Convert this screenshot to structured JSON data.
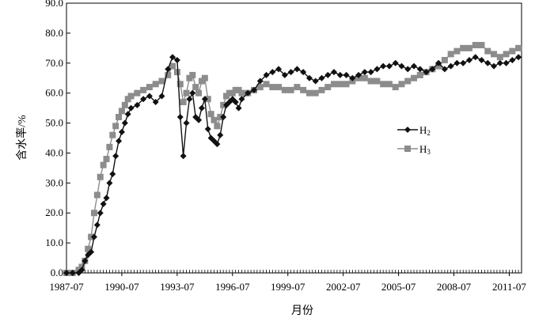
{
  "chart_data": {
    "type": "line",
    "xlabel": "月份",
    "ylabel": "含水率/%",
    "ylim": [
      0,
      90
    ],
    "yticks": [
      "0.0",
      "10.0",
      "20.0",
      "30.0",
      "40.0",
      "50.0",
      "60.0",
      "70.0",
      "80.0",
      "90.0"
    ],
    "xlim": [
      "1987-07",
      "2012-03"
    ],
    "xticks": [
      "1987-07",
      "1990-07",
      "1993-07",
      "1996-07",
      "1999-07",
      "2002-07",
      "2005-07",
      "2008-07",
      "2011-07"
    ],
    "grid": false,
    "legend_position": "center-right",
    "series": [
      {
        "name": "H2",
        "label_main": "H",
        "label_sub": "2",
        "color": "#111111",
        "marker": "diamond",
        "points": [
          [
            "1987-07",
            0
          ],
          [
            "1987-11",
            0
          ],
          [
            "1988-03",
            0
          ],
          [
            "1988-05",
            1
          ],
          [
            "1988-07",
            4
          ],
          [
            "1988-09",
            6
          ],
          [
            "1988-11",
            7
          ],
          [
            "1989-01",
            12
          ],
          [
            "1989-03",
            16
          ],
          [
            "1989-05",
            20
          ],
          [
            "1989-07",
            23
          ],
          [
            "1989-09",
            25
          ],
          [
            "1989-11",
            30
          ],
          [
            "1990-01",
            33
          ],
          [
            "1990-03",
            39
          ],
          [
            "1990-05",
            44
          ],
          [
            "1990-07",
            47
          ],
          [
            "1990-09",
            50
          ],
          [
            "1990-11",
            53
          ],
          [
            "1991-01",
            55
          ],
          [
            "1991-05",
            56
          ],
          [
            "1991-09",
            58
          ],
          [
            "1992-01",
            59
          ],
          [
            "1992-05",
            57
          ],
          [
            "1992-09",
            59
          ],
          [
            "1993-01",
            68
          ],
          [
            "1993-04",
            72
          ],
          [
            "1993-07",
            71
          ],
          [
            "1993-09",
            52
          ],
          [
            "1993-11",
            39
          ],
          [
            "1994-01",
            50
          ],
          [
            "1994-03",
            58
          ],
          [
            "1994-05",
            60
          ],
          [
            "1994-07",
            52
          ],
          [
            "1994-09",
            51
          ],
          [
            "1994-11",
            55
          ],
          [
            "1995-01",
            58
          ],
          [
            "1995-03",
            48
          ],
          [
            "1995-05",
            45
          ],
          [
            "1995-07",
            44
          ],
          [
            "1995-09",
            43
          ],
          [
            "1995-11",
            46
          ],
          [
            "1996-01",
            52
          ],
          [
            "1996-03",
            56
          ],
          [
            "1996-05",
            57
          ],
          [
            "1996-07",
            58
          ],
          [
            "1996-09",
            57
          ],
          [
            "1996-11",
            55
          ],
          [
            "1997-01",
            58
          ],
          [
            "1997-05",
            60
          ],
          [
            "1997-09",
            61
          ],
          [
            "1998-01",
            64
          ],
          [
            "1998-05",
            66
          ],
          [
            "1998-09",
            67
          ],
          [
            "1999-01",
            68
          ],
          [
            "1999-05",
            66
          ],
          [
            "1999-09",
            67
          ],
          [
            "2000-01",
            68
          ],
          [
            "2000-05",
            67
          ],
          [
            "2000-09",
            65
          ],
          [
            "2001-01",
            64
          ],
          [
            "2001-05",
            65
          ],
          [
            "2001-09",
            66
          ],
          [
            "2002-01",
            67
          ],
          [
            "2002-05",
            66
          ],
          [
            "2002-09",
            66
          ],
          [
            "2003-01",
            65
          ],
          [
            "2003-05",
            66
          ],
          [
            "2003-09",
            67
          ],
          [
            "2004-01",
            67
          ],
          [
            "2004-05",
            68
          ],
          [
            "2004-09",
            69
          ],
          [
            "2005-01",
            69
          ],
          [
            "2005-05",
            70
          ],
          [
            "2005-09",
            69
          ],
          [
            "2006-01",
            68
          ],
          [
            "2006-05",
            69
          ],
          [
            "2006-09",
            68
          ],
          [
            "2007-01",
            67
          ],
          [
            "2007-05",
            68
          ],
          [
            "2007-09",
            70
          ],
          [
            "2008-01",
            68
          ],
          [
            "2008-05",
            69
          ],
          [
            "2008-09",
            70
          ],
          [
            "2009-01",
            70
          ],
          [
            "2009-05",
            71
          ],
          [
            "2009-09",
            72
          ],
          [
            "2010-01",
            71
          ],
          [
            "2010-05",
            70
          ],
          [
            "2010-09",
            69
          ],
          [
            "2011-01",
            70
          ],
          [
            "2011-05",
            70
          ],
          [
            "2011-09",
            71
          ],
          [
            "2012-01",
            72
          ]
        ]
      },
      {
        "name": "H3",
        "label_main": "H",
        "label_sub": "3",
        "color": "#8c8c8c",
        "marker": "square",
        "points": [
          [
            "1987-07",
            0
          ],
          [
            "1987-11",
            0
          ],
          [
            "1988-03",
            1
          ],
          [
            "1988-05",
            2
          ],
          [
            "1988-07",
            4
          ],
          [
            "1988-09",
            8
          ],
          [
            "1988-11",
            12
          ],
          [
            "1989-01",
            20
          ],
          [
            "1989-03",
            26
          ],
          [
            "1989-05",
            32
          ],
          [
            "1989-07",
            36
          ],
          [
            "1989-09",
            38
          ],
          [
            "1989-11",
            42
          ],
          [
            "1990-01",
            46
          ],
          [
            "1990-03",
            49
          ],
          [
            "1990-05",
            52
          ],
          [
            "1990-07",
            54
          ],
          [
            "1990-09",
            56
          ],
          [
            "1990-11",
            58
          ],
          [
            "1991-01",
            59
          ],
          [
            "1991-05",
            60
          ],
          [
            "1991-09",
            61
          ],
          [
            "1992-01",
            62
          ],
          [
            "1992-05",
            63
          ],
          [
            "1992-09",
            64
          ],
          [
            "1993-01",
            66
          ],
          [
            "1993-04",
            69
          ],
          [
            "1993-07",
            67
          ],
          [
            "1993-09",
            63
          ],
          [
            "1993-11",
            57
          ],
          [
            "1994-01",
            60
          ],
          [
            "1994-03",
            65
          ],
          [
            "1994-05",
            66
          ],
          [
            "1994-07",
            62
          ],
          [
            "1994-09",
            60
          ],
          [
            "1994-11",
            64
          ],
          [
            "1995-01",
            65
          ],
          [
            "1995-03",
            58
          ],
          [
            "1995-05",
            53
          ],
          [
            "1995-07",
            51
          ],
          [
            "1995-09",
            49
          ],
          [
            "1995-11",
            52
          ],
          [
            "1996-01",
            56
          ],
          [
            "1996-03",
            59
          ],
          [
            "1996-05",
            60
          ],
          [
            "1996-07",
            60
          ],
          [
            "1996-09",
            61
          ],
          [
            "1996-11",
            61
          ],
          [
            "1997-01",
            60
          ],
          [
            "1997-05",
            60
          ],
          [
            "1997-09",
            61
          ],
          [
            "1998-01",
            62
          ],
          [
            "1998-05",
            63
          ],
          [
            "1998-09",
            62
          ],
          [
            "1999-01",
            62
          ],
          [
            "1999-05",
            61
          ],
          [
            "1999-09",
            61
          ],
          [
            "2000-01",
            62
          ],
          [
            "2000-05",
            61
          ],
          [
            "2000-09",
            60
          ],
          [
            "2001-01",
            60
          ],
          [
            "2001-05",
            61
          ],
          [
            "2001-09",
            62
          ],
          [
            "2002-01",
            63
          ],
          [
            "2002-05",
            63
          ],
          [
            "2002-09",
            63
          ],
          [
            "2003-01",
            64
          ],
          [
            "2003-05",
            65
          ],
          [
            "2003-09",
            65
          ],
          [
            "2004-01",
            64
          ],
          [
            "2004-05",
            64
          ],
          [
            "2004-09",
            63
          ],
          [
            "2005-01",
            63
          ],
          [
            "2005-05",
            62
          ],
          [
            "2005-09",
            63
          ],
          [
            "2006-01",
            64
          ],
          [
            "2006-05",
            65
          ],
          [
            "2006-09",
            66
          ],
          [
            "2007-01",
            67
          ],
          [
            "2007-05",
            68
          ],
          [
            "2007-09",
            69
          ],
          [
            "2008-01",
            71
          ],
          [
            "2008-05",
            73
          ],
          [
            "2008-09",
            74
          ],
          [
            "2009-01",
            75
          ],
          [
            "2009-05",
            75
          ],
          [
            "2009-09",
            76
          ],
          [
            "2010-01",
            76
          ],
          [
            "2010-05",
            74
          ],
          [
            "2010-09",
            73
          ],
          [
            "2011-01",
            72
          ],
          [
            "2011-05",
            73
          ],
          [
            "2011-09",
            74
          ],
          [
            "2012-01",
            75
          ]
        ]
      }
    ]
  }
}
